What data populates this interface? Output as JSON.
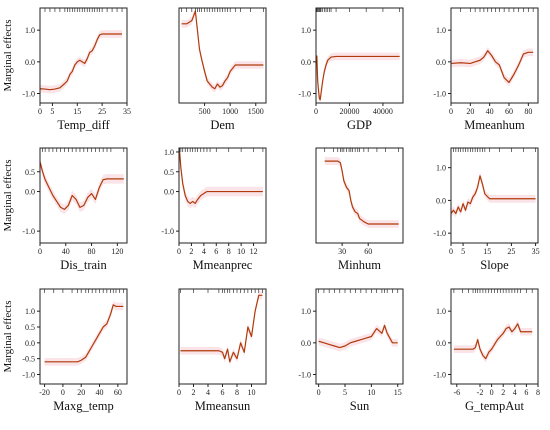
{
  "figure": {
    "ylabel": "Marginal effects",
    "colors": {
      "curve": "#b03a0a",
      "band": "#f7d6dc",
      "axis": "#222222"
    }
  },
  "chart_data": [
    {
      "type": "line",
      "xlabel": "Temp_diff",
      "xlim": [
        0,
        35
      ],
      "ylim": [
        -1.3,
        1.7
      ],
      "xticks": [
        0,
        5,
        15,
        25,
        35
      ],
      "yticks": [
        -1.0,
        0.0,
        1.0
      ],
      "ytick_labels": [
        "-1.0",
        "0.0",
        "1.0"
      ],
      "x": [
        0,
        2,
        4,
        6,
        8,
        10,
        11,
        12,
        13,
        14,
        15,
        16,
        17,
        18,
        19,
        20,
        21,
        22,
        23,
        24,
        25,
        27,
        29,
        31,
        33
      ],
      "y": [
        -0.85,
        -0.86,
        -0.88,
        -0.86,
        -0.82,
        -0.68,
        -0.6,
        -0.4,
        -0.3,
        -0.1,
        0.0,
        0.05,
        0.0,
        -0.05,
        0.1,
        0.3,
        0.35,
        0.5,
        0.7,
        0.85,
        0.88,
        0.88,
        0.88,
        0.88,
        0.88
      ]
    },
    {
      "type": "line",
      "xlabel": "Dem",
      "xlim": [
        0,
        1700
      ],
      "ylim": [
        -1.3,
        1.7
      ],
      "xticks": [
        500,
        1000,
        1500
      ],
      "yticks": [],
      "ytick_labels": [],
      "x": [
        50,
        150,
        250,
        320,
        360,
        400,
        440,
        500,
        550,
        600,
        650,
        700,
        750,
        800,
        850,
        900,
        950,
        1000,
        1100,
        1200,
        1400,
        1650
      ],
      "y": [
        1.2,
        1.2,
        1.3,
        1.6,
        1.0,
        0.4,
        0.1,
        -0.3,
        -0.6,
        -0.7,
        -0.8,
        -0.85,
        -0.7,
        -0.8,
        -0.75,
        -0.6,
        -0.5,
        -0.3,
        -0.1,
        -0.1,
        -0.1,
        -0.1
      ]
    },
    {
      "type": "line",
      "xlabel": "GDP",
      "xlim": [
        0,
        52000
      ],
      "ylim": [
        -1.3,
        1.7
      ],
      "xticks": [
        0,
        20000,
        40000
      ],
      "yticks": [
        -1.0,
        0.0,
        1.0
      ],
      "ytick_labels": [
        "-1.0",
        "0.0",
        "1.0"
      ],
      "x": [
        500,
        1000,
        1500,
        2000,
        2500,
        3000,
        4000,
        5000,
        6000,
        7000,
        8000,
        9000,
        12000,
        20000,
        30000,
        40000,
        50000
      ],
      "y": [
        0.2,
        -0.6,
        -0.9,
        -1.15,
        -1.2,
        -1.0,
        -0.6,
        -0.3,
        -0.1,
        0.05,
        0.1,
        0.15,
        0.17,
        0.17,
        0.17,
        0.17,
        0.17
      ]
    },
    {
      "type": "line",
      "xlabel": "Mmeanhum",
      "xlim": [
        0,
        90
      ],
      "ylim": [
        -1.3,
        1.7
      ],
      "xticks": [
        0,
        20,
        40,
        60,
        80
      ],
      "yticks": [
        -1.0,
        0.0,
        1.0
      ],
      "ytick_labels": [
        "-1.0",
        "0.0",
        "1.0"
      ],
      "x": [
        0,
        10,
        20,
        25,
        30,
        34,
        38,
        42,
        46,
        50,
        55,
        60,
        65,
        70,
        75,
        80,
        85
      ],
      "y": [
        -0.05,
        -0.03,
        -0.05,
        0.0,
        0.05,
        0.15,
        0.35,
        0.2,
        0.0,
        -0.1,
        -0.5,
        -0.65,
        -0.4,
        -0.1,
        0.25,
        0.3,
        0.3
      ]
    },
    {
      "type": "line",
      "xlabel": "Dis_train",
      "xlim": [
        0,
        135
      ],
      "ylim": [
        -1.3,
        1.1
      ],
      "xticks": [
        0,
        40,
        80,
        120
      ],
      "yticks": [
        -1.0,
        0.0,
        0.5
      ],
      "ytick_labels": [
        "-1.0",
        "0.0",
        "0.5"
      ],
      "x": [
        0,
        4,
        8,
        14,
        20,
        26,
        32,
        38,
        44,
        50,
        56,
        62,
        68,
        74,
        80,
        86,
        92,
        98,
        104,
        110,
        130
      ],
      "y": [
        0.75,
        0.5,
        0.3,
        0.1,
        -0.1,
        -0.25,
        -0.4,
        -0.45,
        -0.35,
        -0.1,
        -0.2,
        -0.4,
        -0.35,
        -0.15,
        -0.05,
        -0.2,
        0.1,
        0.3,
        0.32,
        0.32,
        0.32
      ]
    },
    {
      "type": "line",
      "xlabel": "Mmeanprec",
      "xlim": [
        0,
        14
      ],
      "ylim": [
        -1.3,
        1.1
      ],
      "xticks": [
        0,
        2,
        4,
        6,
        8,
        10,
        12
      ],
      "yticks": [
        -1.0,
        0.0,
        0.5,
        1.0
      ],
      "ytick_labels": [
        "-1.0",
        "0.0",
        "0.5",
        "1.0"
      ],
      "x": [
        0.1,
        0.3,
        0.6,
        1.0,
        1.4,
        1.8,
        2.2,
        2.6,
        3.0,
        3.5,
        4.0,
        4.5,
        5.0,
        6.0,
        8.0,
        10.0,
        12.0,
        13.5
      ],
      "y": [
        1.0,
        0.6,
        0.2,
        -0.1,
        -0.25,
        -0.3,
        -0.25,
        -0.3,
        -0.2,
        -0.1,
        -0.05,
        0.0,
        0.0,
        0.0,
        0.0,
        0.0,
        0.0,
        0.0
      ]
    },
    {
      "type": "line",
      "xlabel": "Minhum",
      "xlim": [
        0,
        100
      ],
      "ylim": [
        -1.3,
        1.6
      ],
      "xticks": [
        30,
        60
      ],
      "yticks": [],
      "ytick_labels": [],
      "x": [
        10,
        20,
        25,
        28,
        30,
        32,
        35,
        38,
        40,
        42,
        45,
        48,
        50,
        55,
        60,
        70,
        80,
        95
      ],
      "y": [
        1.2,
        1.2,
        1.2,
        1.15,
        0.9,
        0.6,
        0.4,
        0.3,
        0.0,
        -0.2,
        -0.35,
        -0.4,
        -0.55,
        -0.65,
        -0.72,
        -0.72,
        -0.72,
        -0.72
      ]
    },
    {
      "type": "line",
      "xlabel": "Slope",
      "xlim": [
        0,
        36
      ],
      "ylim": [
        -1.3,
        1.6
      ],
      "xticks": [
        0,
        5,
        15,
        25,
        35
      ],
      "yticks": [
        -1.0,
        0.0,
        1.0
      ],
      "ytick_labels": [
        "-1.0",
        "0.0",
        "1.0"
      ],
      "x": [
        0,
        1,
        2,
        3,
        4,
        5,
        6,
        7,
        8,
        9,
        10,
        11,
        12,
        13,
        14,
        16,
        20,
        25,
        30,
        35
      ],
      "y": [
        -0.4,
        -0.3,
        -0.4,
        -0.2,
        -0.35,
        -0.1,
        -0.3,
        -0.05,
        -0.1,
        0.1,
        0.2,
        0.4,
        0.75,
        0.5,
        0.2,
        0.05,
        0.05,
        0.05,
        0.05,
        0.05
      ]
    },
    {
      "type": "line",
      "xlabel": "Maxg_temp",
      "xlim": [
        -25,
        70
      ],
      "ylim": [
        -1.3,
        1.7
      ],
      "xticks": [
        -20,
        0,
        20,
        40,
        60
      ],
      "yticks": [
        -1.0,
        -0.5,
        0.0,
        0.5,
        1.0
      ],
      "ytick_labels": [
        "-1.0",
        "-0.5",
        "0.0",
        "0.5",
        "1.0"
      ],
      "x": [
        -20,
        -10,
        0,
        10,
        16,
        20,
        25,
        28,
        32,
        36,
        40,
        44,
        48,
        52,
        55,
        58,
        62,
        66
      ],
      "y": [
        -0.6,
        -0.6,
        -0.6,
        -0.6,
        -0.6,
        -0.55,
        -0.45,
        -0.3,
        -0.1,
        0.1,
        0.3,
        0.5,
        0.6,
        0.9,
        1.2,
        1.15,
        1.15,
        1.15
      ]
    },
    {
      "type": "line",
      "xlabel": "Mmeansun",
      "xlim": [
        0,
        12
      ],
      "ylim": [
        -1.3,
        1.7
      ],
      "xticks": [
        0,
        2,
        4,
        6,
        8,
        10
      ],
      "yticks": [],
      "ytick_labels": [],
      "x": [
        0.2,
        2,
        4,
        5.5,
        6.0,
        6.3,
        6.7,
        7.0,
        7.5,
        8.0,
        8.5,
        9.0,
        9.5,
        10.0,
        10.5,
        11.0,
        11.5
      ],
      "y": [
        -0.25,
        -0.25,
        -0.25,
        -0.25,
        -0.3,
        -0.5,
        -0.2,
        -0.6,
        -0.3,
        -0.5,
        0.0,
        -0.3,
        0.5,
        0.2,
        1.0,
        1.5,
        1.5
      ]
    },
    {
      "type": "line",
      "xlabel": "Sun",
      "xlim": [
        -0.5,
        16
      ],
      "ylim": [
        -1.3,
        1.7
      ],
      "xticks": [
        0,
        5,
        10,
        15
      ],
      "yticks": [
        -1.0,
        0.0,
        1.0
      ],
      "ytick_labels": [
        "-1.0",
        "0.0",
        "1.0"
      ],
      "x": [
        0,
        1,
        2,
        3,
        4,
        5,
        6,
        7,
        8,
        9,
        10,
        11,
        12,
        12.5,
        13,
        14,
        15
      ],
      "y": [
        0.05,
        0.0,
        -0.05,
        -0.1,
        -0.15,
        -0.1,
        0.0,
        0.05,
        0.1,
        0.15,
        0.2,
        0.45,
        0.3,
        0.55,
        0.3,
        0.0,
        0.0
      ]
    },
    {
      "type": "line",
      "xlabel": "G_tempAut",
      "xlim": [
        -7,
        8
      ],
      "ylim": [
        -1.3,
        1.7
      ],
      "xticks": [
        -6,
        -2,
        0,
        2,
        4,
        6,
        8
      ],
      "yticks": [
        -1.0,
        0.0,
        1.0
      ],
      "ytick_labels": [
        "-1.0",
        "0.0",
        "1.0"
      ],
      "x": [
        -6.5,
        -5,
        -4,
        -3.2,
        -2.8,
        -2.4,
        -2,
        -1.5,
        -1,
        -0.5,
        0,
        0.5,
        1,
        1.5,
        2,
        2.5,
        3,
        3.5,
        4,
        4.5,
        5,
        6,
        7
      ],
      "y": [
        -0.2,
        -0.2,
        -0.2,
        -0.2,
        -0.15,
        0.1,
        -0.2,
        -0.4,
        -0.5,
        -0.3,
        -0.2,
        -0.05,
        0.1,
        0.2,
        0.3,
        0.45,
        0.5,
        0.35,
        0.45,
        0.6,
        0.35,
        0.35,
        0.35
      ]
    }
  ]
}
